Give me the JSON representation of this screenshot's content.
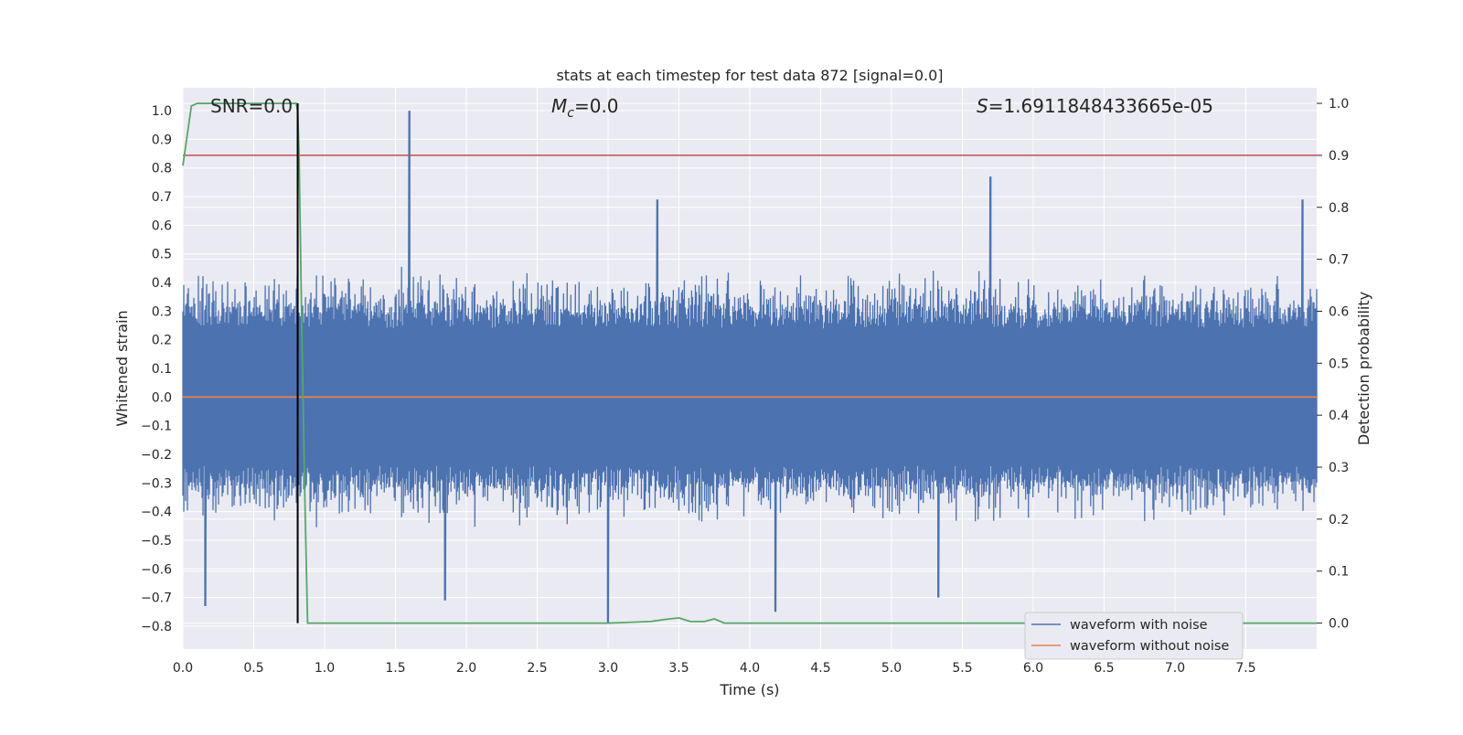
{
  "chart_data": {
    "type": "line",
    "title": "stats at each timestep for test data 872 [signal=0.0]",
    "xlabel": "Time (s)",
    "ylabel_left": "Whitened strain",
    "ylabel_right": "Detection probability",
    "xlim": [
      0.0,
      8.0
    ],
    "ylim_left": [
      -0.88,
      1.08
    ],
    "ylim_right": [
      -0.05,
      1.03
    ],
    "x_ticks": [
      "0.0",
      "0.5",
      "1.0",
      "1.5",
      "2.0",
      "2.5",
      "3.0",
      "3.5",
      "4.0",
      "4.5",
      "5.0",
      "5.5",
      "6.0",
      "6.5",
      "7.0",
      "7.5"
    ],
    "y_left_ticks": [
      "1.0",
      "0.9",
      "0.8",
      "0.7",
      "0.6",
      "0.5",
      "0.4",
      "0.3",
      "0.2",
      "0.1",
      "0.0",
      "−0.1",
      "−0.2",
      "−0.3",
      "−0.4",
      "−0.5",
      "−0.6",
      "−0.7",
      "−0.8"
    ],
    "y_right_ticks": [
      "1.0",
      "0.9",
      "0.8",
      "0.7",
      "0.6",
      "0.5",
      "0.4",
      "0.3",
      "0.2",
      "0.1",
      "0.0"
    ],
    "annotations": {
      "snr": "SNR=0.0",
      "mc_symbol": "M",
      "mc_sub": "c",
      "mc_value": "=0.0",
      "s_symbol": "S",
      "s_value": "=1.6911848433665e-05"
    },
    "grid": true,
    "legend": {
      "placement": "lower-right"
    },
    "series": [
      {
        "name": "waveform with noise",
        "axis": "left",
        "color": "#4c72b0",
        "note": "dense noise, approx. 4096 samples over 0-8 s",
        "envelope_peaks": [
          {
            "x": 1.6,
            "y": 1.0
          },
          {
            "x": 5.7,
            "y": 0.77
          },
          {
            "x": 3.35,
            "y": 0.69
          },
          {
            "x": 7.9,
            "y": 0.69
          },
          {
            "x": 3.0,
            "y": -0.79
          },
          {
            "x": 4.18,
            "y": -0.75
          },
          {
            "x": 0.16,
            "y": -0.73
          },
          {
            "x": 1.85,
            "y": -0.71
          },
          {
            "x": 5.33,
            "y": -0.7
          }
        ]
      },
      {
        "name": "waveform without noise",
        "axis": "left",
        "color": "#dd8452",
        "x": [
          0.0,
          8.0
        ],
        "y": [
          0.0,
          0.0
        ]
      },
      {
        "name": "",
        "axis": "right",
        "color": "#55a868",
        "x": [
          0.0,
          0.06,
          0.1,
          0.2,
          0.5,
          0.75,
          0.8,
          0.81,
          0.82,
          0.84,
          0.86,
          0.88,
          0.9,
          1.5,
          3.0,
          3.3,
          3.4,
          3.5,
          3.58,
          3.68,
          3.75,
          3.82,
          4.0,
          6.0,
          8.0
        ],
        "y": [
          0.88,
          0.995,
          1.0,
          1.0,
          1.0,
          1.0,
          1.0,
          0.985,
          0.9,
          0.55,
          0.25,
          0.0,
          0.0,
          0.0,
          0.0,
          0.003,
          0.007,
          0.01,
          0.003,
          0.003,
          0.008,
          0.0,
          0.0,
          0.0,
          0.0
        ]
      }
    ],
    "threshold": {
      "axis": "right",
      "value": 0.9,
      "color": "#c44e52"
    },
    "marker_line": {
      "x": 0.81,
      "y_range_right": [
        0.0,
        1.0
      ],
      "color": "#000000"
    }
  }
}
